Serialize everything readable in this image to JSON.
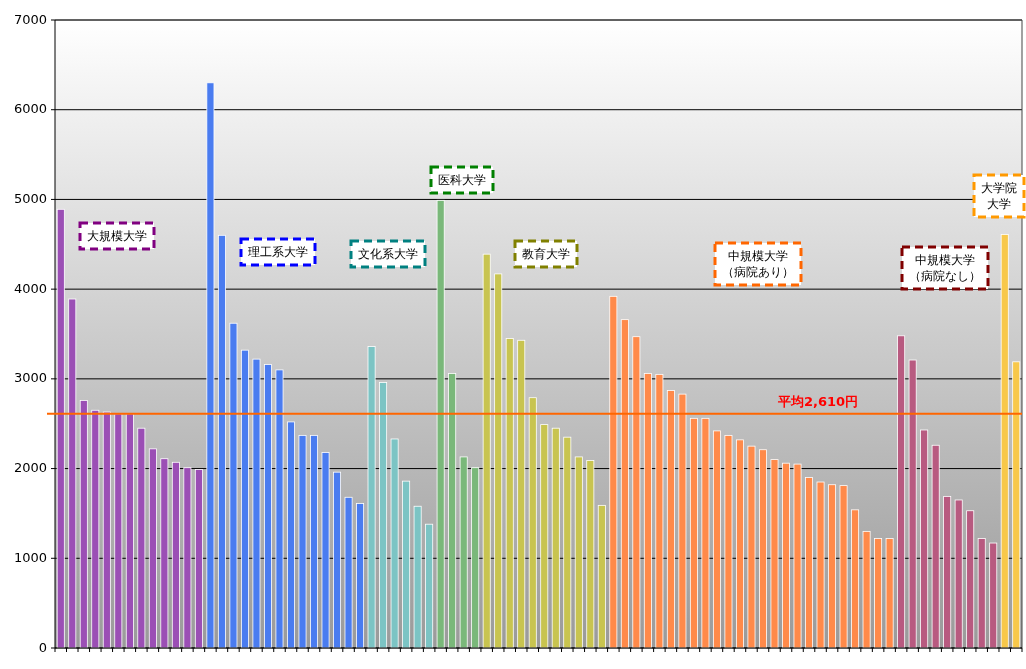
{
  "chart_data": {
    "type": "bar",
    "categories": [
      null,
      null,
      null,
      null,
      null,
      null,
      null,
      null,
      null,
      null,
      null,
      null,
      null,
      null,
      null,
      null,
      null,
      null,
      null,
      null,
      null,
      null,
      null,
      null,
      null,
      null,
      null,
      null,
      null,
      null,
      null,
      null,
      null,
      null,
      null,
      null,
      null,
      null,
      null,
      null,
      null,
      null,
      null,
      null,
      null,
      null,
      null,
      null,
      null,
      null,
      null,
      null,
      null,
      null,
      null,
      null,
      null,
      null,
      null,
      null,
      null,
      null,
      null,
      null,
      null,
      null,
      null,
      null,
      null,
      null,
      null,
      null,
      null,
      null,
      null,
      null,
      null,
      null,
      null,
      null,
      null,
      null,
      null,
      null
    ],
    "values": [
      4890,
      3890,
      2760,
      2650,
      2630,
      2610,
      2610,
      2450,
      2220,
      2110,
      2070,
      2010,
      1990,
      6300,
      4600,
      3620,
      3320,
      3220,
      3160,
      3100,
      2520,
      2370,
      2370,
      2180,
      1960,
      1680,
      1610,
      3360,
      2960,
      2330,
      1860,
      1580,
      1380,
      4990,
      3060,
      2130,
      2010,
      4390,
      4170,
      3450,
      3430,
      2790,
      2490,
      2450,
      2350,
      2130,
      2090,
      1590,
      3920,
      3660,
      3470,
      3060,
      3050,
      2870,
      2830,
      2560,
      2560,
      2420,
      2370,
      2320,
      2250,
      2210,
      2100,
      2060,
      2050,
      1900,
      1850,
      1820,
      1810,
      1540,
      1300,
      1220,
      1220,
      3480,
      3210,
      2430,
      2260,
      1690,
      1650,
      1530,
      1220,
      1170,
      4610,
      3190
    ],
    "colors": [
      "#9b4fb5",
      "#9b4fb5",
      "#9b4fb5",
      "#9b4fb5",
      "#9b4fb5",
      "#9b4fb5",
      "#9b4fb5",
      "#9b4fb5",
      "#9b4fb5",
      "#9b4fb5",
      "#9b4fb5",
      "#9b4fb5",
      "#9b4fb5",
      "#4a7cf0",
      "#4a7cf0",
      "#4a7cf0",
      "#4a7cf0",
      "#4a7cf0",
      "#4a7cf0",
      "#4a7cf0",
      "#4a7cf0",
      "#4a7cf0",
      "#4a7cf0",
      "#4a7cf0",
      "#4a7cf0",
      "#4a7cf0",
      "#4a7cf0",
      "#7cc4c4",
      "#7cc4c4",
      "#7cc4c4",
      "#7cc4c4",
      "#7cc4c4",
      "#7cc4c4",
      "#7ab87a",
      "#7ab87a",
      "#7ab87a",
      "#7ab87a",
      "#c8c450",
      "#c8c450",
      "#c8c450",
      "#c8c450",
      "#c8c450",
      "#c8c450",
      "#c8c450",
      "#c8c450",
      "#c8c450",
      "#c8c450",
      "#c8c450",
      "#ff8a4a",
      "#ff8a4a",
      "#ff8a4a",
      "#ff8a4a",
      "#ff8a4a",
      "#ff8a4a",
      "#ff8a4a",
      "#ff8a4a",
      "#ff8a4a",
      "#ff8a4a",
      "#ff8a4a",
      "#ff8a4a",
      "#ff8a4a",
      "#ff8a4a",
      "#ff8a4a",
      "#ff8a4a",
      "#ff8a4a",
      "#ff8a4a",
      "#ff8a4a",
      "#ff8a4a",
      "#ff8a4a",
      "#ff8a4a",
      "#ff8a4a",
      "#ff8a4a",
      "#ff8a4a",
      "#b85a80",
      "#b85a80",
      "#b85a80",
      "#b85a80",
      "#b85a80",
      "#b85a80",
      "#b85a80",
      "#b85a80",
      "#b85a80",
      "#f8c84a",
      "#f8c84a"
    ],
    "ylim": [
      0,
      7000
    ],
    "yticks": [
      0,
      1000,
      2000,
      3000,
      4000,
      5000,
      6000,
      7000
    ],
    "grid": "y",
    "tick_labels": "y",
    "ref_lines": [
      {
        "axis": "y",
        "value": 2610,
        "label": "平均2,610円",
        "color": "#ff6600"
      }
    ],
    "annotations": [
      "大規模大学",
      "理工系大学",
      "文化系大学",
      "医科大学",
      "教育大学",
      "中規模大学（病院あり）",
      "中規模大学（病院なし）",
      "大学院大学"
    ]
  }
}
